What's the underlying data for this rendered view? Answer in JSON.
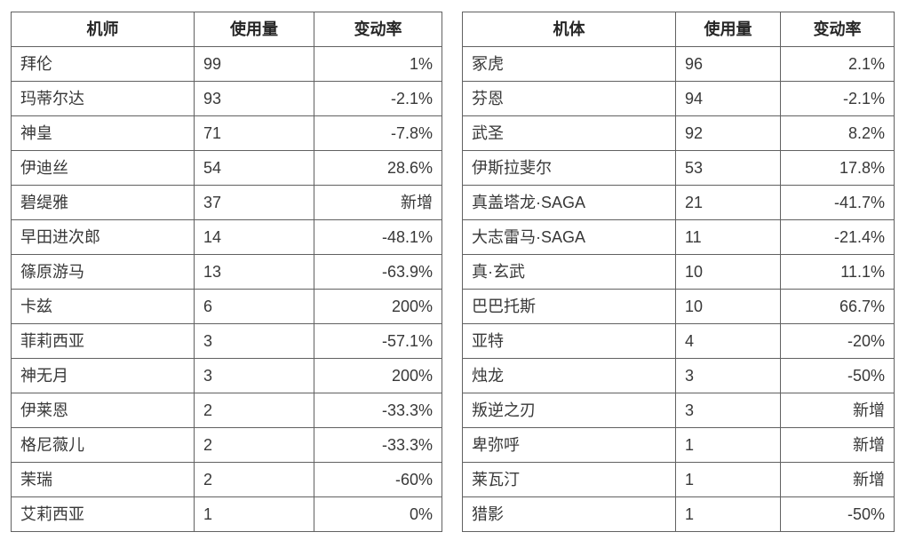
{
  "colors": {
    "border": "#616161",
    "header_text": "#262626",
    "body_text": "#383838",
    "background": "#ffffff"
  },
  "tables": [
    {
      "name": "pilot-usage-table",
      "headers": [
        "机师",
        "使用量",
        "变动率"
      ],
      "rows": [
        [
          "拜伦",
          "99",
          "1%"
        ],
        [
          "玛蒂尔达",
          "93",
          "-2.1%"
        ],
        [
          "神皇",
          "71",
          "-7.8%"
        ],
        [
          "伊迪丝",
          "54",
          "28.6%"
        ],
        [
          "碧缇雅",
          "37",
          "新增"
        ],
        [
          "早田进次郎",
          "14",
          "-48.1%"
        ],
        [
          "篠原游马",
          "13",
          "-63.9%"
        ],
        [
          "卡兹",
          "6",
          "200%"
        ],
        [
          "菲莉西亚",
          "3",
          "-57.1%"
        ],
        [
          "神无月",
          "3",
          "200%"
        ],
        [
          "伊莱恩",
          "2",
          "-33.3%"
        ],
        [
          "格尼薇儿",
          "2",
          "-33.3%"
        ],
        [
          "茉瑞",
          "2",
          "-60%"
        ],
        [
          "艾莉西亚",
          "1",
          "0%"
        ]
      ]
    },
    {
      "name": "mecha-usage-table",
      "headers": [
        "机体",
        "使用量",
        "变动率"
      ],
      "rows": [
        [
          "冢虎",
          "96",
          "2.1%"
        ],
        [
          "芬恩",
          "94",
          "-2.1%"
        ],
        [
          "武圣",
          "92",
          "8.2%"
        ],
        [
          "伊斯拉斐尔",
          "53",
          "17.8%"
        ],
        [
          "真盖塔龙·SAGA",
          "21",
          "-41.7%"
        ],
        [
          "大志雷马·SAGA",
          "11",
          "-21.4%"
        ],
        [
          "真·玄武",
          "10",
          "11.1%"
        ],
        [
          "巴巴托斯",
          "10",
          "66.7%"
        ],
        [
          "亚特",
          "4",
          "-20%"
        ],
        [
          "烛龙",
          "3",
          "-50%"
        ],
        [
          "叛逆之刃",
          "3",
          "新增"
        ],
        [
          "卑弥呼",
          "1",
          "新增"
        ],
        [
          "莱瓦汀",
          "1",
          "新增"
        ],
        [
          "猎影",
          "1",
          "-50%"
        ]
      ]
    }
  ]
}
